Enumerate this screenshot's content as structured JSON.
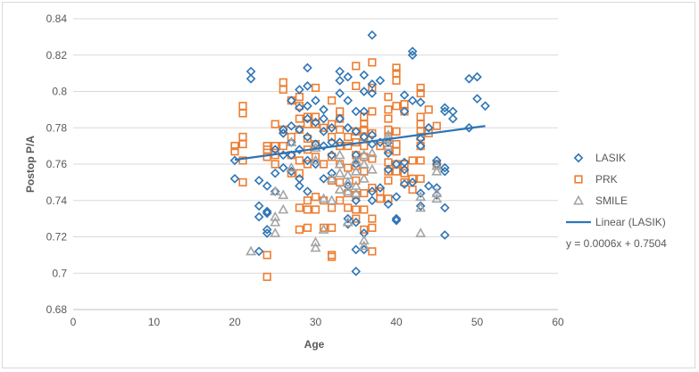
{
  "chart_data": {
    "type": "scatter",
    "title": "",
    "xlabel": "Age",
    "ylabel": "Postop P/A",
    "xlim": [
      0,
      60
    ],
    "ylim": [
      0.68,
      0.84
    ],
    "x_ticks": [
      "0",
      "10",
      "20",
      "30",
      "40",
      "50",
      "60"
    ],
    "y_ticks": [
      "0.68",
      "0.7",
      "0.72",
      "0.74",
      "0.76",
      "0.78",
      "0.8",
      "0.82",
      "0.84"
    ],
    "grid": "horizontal",
    "legend_position": "right",
    "series": [
      {
        "name": "LASIK",
        "marker": "diamond",
        "color": "#2e75b6",
        "points": [
          [
            20,
            0.762
          ],
          [
            20,
            0.752
          ],
          [
            22,
            0.811
          ],
          [
            22,
            0.807
          ],
          [
            23,
            0.751
          ],
          [
            23,
            0.737
          ],
          [
            23,
            0.731
          ],
          [
            23,
            0.712
          ],
          [
            24,
            0.748
          ],
          [
            24,
            0.734
          ],
          [
            24,
            0.733
          ],
          [
            24,
            0.724
          ],
          [
            24,
            0.722
          ],
          [
            25,
            0.768
          ],
          [
            25,
            0.755
          ],
          [
            25,
            0.745
          ],
          [
            26,
            0.779
          ],
          [
            26,
            0.777
          ],
          [
            26,
            0.765
          ],
          [
            26,
            0.758
          ],
          [
            27,
            0.795
          ],
          [
            27,
            0.781
          ],
          [
            27,
            0.772
          ],
          [
            27,
            0.765
          ],
          [
            27,
            0.756
          ],
          [
            28,
            0.801
          ],
          [
            28,
            0.791
          ],
          [
            28,
            0.779
          ],
          [
            28,
            0.768
          ],
          [
            28,
            0.752
          ],
          [
            28,
            0.748
          ],
          [
            29,
            0.813
          ],
          [
            29,
            0.803
          ],
          [
            29,
            0.792
          ],
          [
            29,
            0.785
          ],
          [
            29,
            0.775
          ],
          [
            29,
            0.762
          ],
          [
            29,
            0.745
          ],
          [
            30,
            0.795
          ],
          [
            30,
            0.783
          ],
          [
            30,
            0.771
          ],
          [
            30,
            0.76
          ],
          [
            31,
            0.79
          ],
          [
            31,
            0.785
          ],
          [
            31,
            0.778
          ],
          [
            31,
            0.77
          ],
          [
            31,
            0.752
          ],
          [
            32,
            0.78
          ],
          [
            32,
            0.772
          ],
          [
            32,
            0.765
          ],
          [
            32,
            0.755
          ],
          [
            33,
            0.811
          ],
          [
            33,
            0.806
          ],
          [
            33,
            0.799
          ],
          [
            33,
            0.785
          ],
          [
            33,
            0.772
          ],
          [
            34,
            0.808
          ],
          [
            34,
            0.795
          ],
          [
            34,
            0.78
          ],
          [
            34,
            0.748
          ],
          [
            34,
            0.73
          ],
          [
            34,
            0.727
          ],
          [
            35,
            0.789
          ],
          [
            35,
            0.778
          ],
          [
            35,
            0.765
          ],
          [
            35,
            0.76
          ],
          [
            35,
            0.74
          ],
          [
            35,
            0.728
          ],
          [
            35,
            0.713
          ],
          [
            35,
            0.701
          ],
          [
            36,
            0.809
          ],
          [
            36,
            0.8
          ],
          [
            36,
            0.789
          ],
          [
            36,
            0.775
          ],
          [
            36,
            0.722
          ],
          [
            36,
            0.713
          ],
          [
            37,
            0.831
          ],
          [
            37,
            0.804
          ],
          [
            37,
            0.799
          ],
          [
            37,
            0.776
          ],
          [
            37,
            0.771
          ],
          [
            37,
            0.745
          ],
          [
            37,
            0.74
          ],
          [
            38,
            0.806
          ],
          [
            38,
            0.772
          ],
          [
            38,
            0.747
          ],
          [
            39,
            0.772
          ],
          [
            39,
            0.766
          ],
          [
            39,
            0.757
          ],
          [
            39,
            0.738
          ],
          [
            40,
            0.76
          ],
          [
            40,
            0.742
          ],
          [
            40,
            0.73
          ],
          [
            40,
            0.729
          ],
          [
            41,
            0.798
          ],
          [
            41,
            0.789
          ],
          [
            41,
            0.761
          ],
          [
            41,
            0.757
          ],
          [
            41,
            0.749
          ],
          [
            42,
            0.822
          ],
          [
            42,
            0.82
          ],
          [
            42,
            0.795
          ],
          [
            42,
            0.75
          ],
          [
            43,
            0.794
          ],
          [
            43,
            0.774
          ],
          [
            43,
            0.77
          ],
          [
            43,
            0.744
          ],
          [
            43,
            0.737
          ],
          [
            44,
            0.78
          ],
          [
            44,
            0.748
          ],
          [
            45,
            0.762
          ],
          [
            45,
            0.76
          ],
          [
            45,
            0.747
          ],
          [
            45,
            0.743
          ],
          [
            46,
            0.791
          ],
          [
            46,
            0.789
          ],
          [
            46,
            0.758
          ],
          [
            46,
            0.756
          ],
          [
            46,
            0.736
          ],
          [
            46,
            0.721
          ],
          [
            47,
            0.789
          ],
          [
            47,
            0.785
          ],
          [
            49,
            0.807
          ],
          [
            49,
            0.78
          ],
          [
            50,
            0.808
          ],
          [
            50,
            0.796
          ],
          [
            51,
            0.792
          ]
        ]
      },
      {
        "name": "PRK",
        "marker": "square",
        "color": "#ed7d31",
        "points": [
          [
            20,
            0.77
          ],
          [
            20,
            0.767
          ],
          [
            21,
            0.792
          ],
          [
            21,
            0.788
          ],
          [
            21,
            0.775
          ],
          [
            21,
            0.771
          ],
          [
            21,
            0.762
          ],
          [
            21,
            0.75
          ],
          [
            24,
            0.77
          ],
          [
            24,
            0.768
          ],
          [
            24,
            0.764
          ],
          [
            24,
            0.71
          ],
          [
            24,
            0.698
          ],
          [
            25,
            0.782
          ],
          [
            25,
            0.77
          ],
          [
            25,
            0.765
          ],
          [
            25,
            0.76
          ],
          [
            26,
            0.805
          ],
          [
            26,
            0.801
          ],
          [
            26,
            0.779
          ],
          [
            26,
            0.77
          ],
          [
            27,
            0.795
          ],
          [
            27,
            0.775
          ],
          [
            27,
            0.765
          ],
          [
            27,
            0.755
          ],
          [
            28,
            0.797
          ],
          [
            28,
            0.792
          ],
          [
            28,
            0.785
          ],
          [
            28,
            0.779
          ],
          [
            28,
            0.762
          ],
          [
            28,
            0.755
          ],
          [
            28,
            0.736
          ],
          [
            28,
            0.724
          ],
          [
            29,
            0.786
          ],
          [
            29,
            0.782
          ],
          [
            29,
            0.774
          ],
          [
            29,
            0.768
          ],
          [
            29,
            0.76
          ],
          [
            29,
            0.74
          ],
          [
            29,
            0.735
          ],
          [
            29,
            0.725
          ],
          [
            30,
            0.802
          ],
          [
            30,
            0.786
          ],
          [
            30,
            0.782
          ],
          [
            30,
            0.771
          ],
          [
            30,
            0.764
          ],
          [
            30,
            0.742
          ],
          [
            30,
            0.735
          ],
          [
            31,
            0.78
          ],
          [
            31,
            0.76
          ],
          [
            31,
            0.74
          ],
          [
            31,
            0.725
          ],
          [
            32,
            0.795
          ],
          [
            32,
            0.782
          ],
          [
            32,
            0.775
          ],
          [
            32,
            0.764
          ],
          [
            32,
            0.751
          ],
          [
            32,
            0.736
          ],
          [
            32,
            0.725
          ],
          [
            32,
            0.71
          ],
          [
            32,
            0.709
          ],
          [
            33,
            0.789
          ],
          [
            33,
            0.785
          ],
          [
            33,
            0.779
          ],
          [
            33,
            0.77
          ],
          [
            33,
            0.76
          ],
          [
            33,
            0.75
          ],
          [
            33,
            0.74
          ],
          [
            34,
            0.775
          ],
          [
            34,
            0.77
          ],
          [
            34,
            0.758
          ],
          [
            34,
            0.744
          ],
          [
            34,
            0.736
          ],
          [
            35,
            0.814
          ],
          [
            35,
            0.803
          ],
          [
            35,
            0.778
          ],
          [
            35,
            0.772
          ],
          [
            35,
            0.765
          ],
          [
            35,
            0.759
          ],
          [
            35,
            0.751
          ],
          [
            35,
            0.743
          ],
          [
            35,
            0.735
          ],
          [
            35,
            0.73
          ],
          [
            36,
            0.786
          ],
          [
            36,
            0.782
          ],
          [
            36,
            0.779
          ],
          [
            36,
            0.775
          ],
          [
            36,
            0.77
          ],
          [
            36,
            0.764
          ],
          [
            36,
            0.756
          ],
          [
            36,
            0.744
          ],
          [
            36,
            0.735
          ],
          [
            36,
            0.724
          ],
          [
            37,
            0.816
          ],
          [
            37,
            0.802
          ],
          [
            37,
            0.789
          ],
          [
            37,
            0.777
          ],
          [
            37,
            0.763
          ],
          [
            37,
            0.747
          ],
          [
            37,
            0.73
          ],
          [
            37,
            0.725
          ],
          [
            37,
            0.712
          ],
          [
            38,
            0.77
          ],
          [
            38,
            0.745
          ],
          [
            38,
            0.741
          ],
          [
            39,
            0.797
          ],
          [
            39,
            0.79
          ],
          [
            39,
            0.785
          ],
          [
            39,
            0.779
          ],
          [
            39,
            0.775
          ],
          [
            39,
            0.768
          ],
          [
            39,
            0.761
          ],
          [
            39,
            0.756
          ],
          [
            39,
            0.751
          ],
          [
            39,
            0.741
          ],
          [
            40,
            0.813
          ],
          [
            40,
            0.81
          ],
          [
            40,
            0.806
          ],
          [
            40,
            0.792
          ],
          [
            40,
            0.778
          ],
          [
            40,
            0.771
          ],
          [
            40,
            0.767
          ],
          [
            40,
            0.76
          ],
          [
            40,
            0.756
          ],
          [
            41,
            0.793
          ],
          [
            41,
            0.789
          ],
          [
            41,
            0.76
          ],
          [
            41,
            0.755
          ],
          [
            41,
            0.75
          ],
          [
            42,
            0.762
          ],
          [
            42,
            0.752
          ],
          [
            42,
            0.746
          ],
          [
            43,
            0.802
          ],
          [
            43,
            0.799
          ],
          [
            43,
            0.786
          ],
          [
            43,
            0.782
          ],
          [
            43,
            0.778
          ],
          [
            43,
            0.775
          ],
          [
            43,
            0.77
          ],
          [
            43,
            0.762
          ],
          [
            43,
            0.752
          ],
          [
            44,
            0.79
          ],
          [
            44,
            0.777
          ],
          [
            45,
            0.781
          ],
          [
            45,
            0.76
          ]
        ]
      },
      {
        "name": "SMILE",
        "marker": "triangle",
        "color": "#a5a5a5",
        "points": [
          [
            22,
            0.712
          ],
          [
            25,
            0.745
          ],
          [
            25,
            0.731
          ],
          [
            25,
            0.728
          ],
          [
            25,
            0.722
          ],
          [
            26,
            0.743
          ],
          [
            26,
            0.735
          ],
          [
            27,
            0.772
          ],
          [
            27,
            0.758
          ],
          [
            30,
            0.769
          ],
          [
            30,
            0.762
          ],
          [
            30,
            0.717
          ],
          [
            30,
            0.714
          ],
          [
            31,
            0.741
          ],
          [
            31,
            0.724
          ],
          [
            32,
            0.752
          ],
          [
            32,
            0.74
          ],
          [
            33,
            0.765
          ],
          [
            33,
            0.76
          ],
          [
            33,
            0.755
          ],
          [
            33,
            0.746
          ],
          [
            34,
            0.754
          ],
          [
            34,
            0.75
          ],
          [
            34,
            0.745
          ],
          [
            34,
            0.728
          ],
          [
            35,
            0.762
          ],
          [
            35,
            0.756
          ],
          [
            35,
            0.748
          ],
          [
            35,
            0.744
          ],
          [
            36,
            0.765
          ],
          [
            36,
            0.76
          ],
          [
            36,
            0.752
          ],
          [
            36,
            0.718
          ],
          [
            36,
            0.715
          ],
          [
            37,
            0.766
          ],
          [
            37,
            0.757
          ],
          [
            39,
            0.776
          ],
          [
            39,
            0.774
          ],
          [
            39,
            0.77
          ],
          [
            43,
            0.742
          ],
          [
            43,
            0.736
          ],
          [
            43,
            0.722
          ],
          [
            45,
            0.759
          ],
          [
            45,
            0.756
          ],
          [
            45,
            0.744
          ],
          [
            45,
            0.741
          ]
        ]
      }
    ],
    "trendline": {
      "name": "Linear (LASIK)",
      "color": "#2e75b6",
      "x": [
        20,
        51
      ],
      "y": [
        0.7624,
        0.781
      ],
      "equation": "y = 0.0006x + 0.7504"
    }
  }
}
